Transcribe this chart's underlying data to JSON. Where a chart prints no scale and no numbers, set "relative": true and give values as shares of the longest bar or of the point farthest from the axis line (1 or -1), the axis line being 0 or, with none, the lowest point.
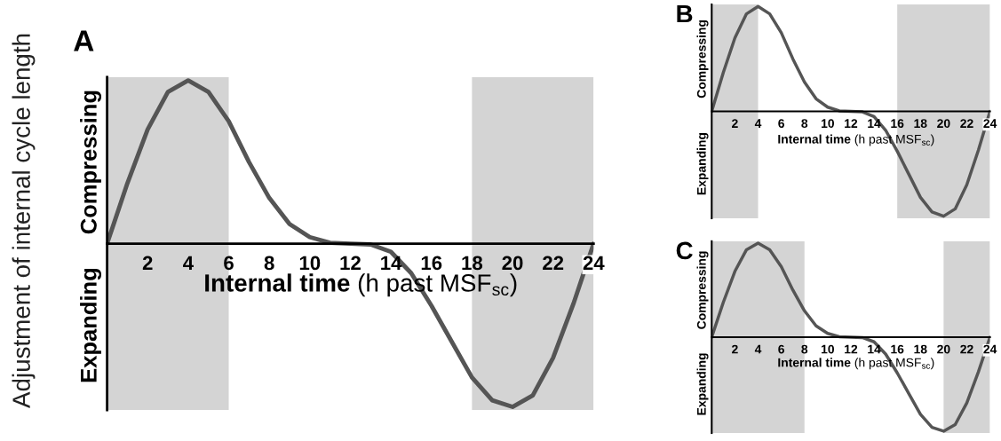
{
  "chart_data": [
    {
      "type": "line",
      "title": "A",
      "xlabel": "Internal time (h past MSF$_{sc}$)",
      "ylabel": "Adjustment of internal cycle length",
      "annotations": [
        "Compressing",
        "Expanding"
      ],
      "relative": true,
      "x": [
        0,
        1,
        2,
        3,
        4,
        5,
        6,
        7,
        8,
        9,
        10,
        11,
        12,
        13,
        14,
        15,
        16,
        17,
        18,
        19,
        20,
        21,
        22,
        23,
        24
      ],
      "series": [
        {
          "color": "#555555",
          "values": [
            0,
            0.37,
            0.7,
            0.93,
            1,
            0.93,
            0.75,
            0.5,
            0.28,
            0.12,
            0.04,
            0.005,
            0,
            -0.005,
            -0.05,
            -0.18,
            -0.38,
            -0.6,
            -0.82,
            -0.96,
            -1,
            -0.93,
            -0.7,
            -0.37,
            0
          ]
        }
      ],
      "xlim": [
        0,
        24
      ],
      "xticks": [
        2,
        4,
        6,
        8,
        10,
        12,
        14,
        16,
        18,
        20,
        22,
        24
      ],
      "bands": [
        {
          "axis": "x",
          "from": 0,
          "to": 6,
          "color": "#d4d4d4"
        },
        {
          "axis": "x",
          "from": 18,
          "to": 24,
          "color": "#d4d4d4"
        }
      ],
      "grid": false,
      "legend": false
    },
    {
      "type": "line",
      "title": "B",
      "xlabel": "Internal time (h past MSF$_{sc}$)",
      "annotations": [
        "Compressing",
        "Expanding"
      ],
      "relative": true,
      "x": [
        0,
        1,
        2,
        3,
        4,
        5,
        6,
        7,
        8,
        9,
        10,
        11,
        12,
        13,
        14,
        15,
        16,
        17,
        18,
        19,
        20,
        21,
        22,
        23,
        24
      ],
      "series": [
        {
          "color": "#555555",
          "values": [
            0,
            0.37,
            0.7,
            0.93,
            1,
            0.93,
            0.75,
            0.5,
            0.28,
            0.12,
            0.04,
            0.005,
            0,
            -0.005,
            -0.05,
            -0.18,
            -0.38,
            -0.6,
            -0.82,
            -0.96,
            -1,
            -0.93,
            -0.7,
            -0.37,
            0
          ]
        }
      ],
      "xlim": [
        0,
        24
      ],
      "xticks": [
        2,
        4,
        6,
        8,
        10,
        12,
        14,
        16,
        18,
        20,
        22,
        24
      ],
      "bands": [
        {
          "axis": "x",
          "from": 0,
          "to": 4,
          "color": "#d4d4d4"
        },
        {
          "axis": "x",
          "from": 16,
          "to": 24,
          "color": "#d4d4d4"
        }
      ],
      "grid": false,
      "legend": false
    },
    {
      "type": "line",
      "title": "C",
      "xlabel": "Internal time (h past MSF$_{sc}$)",
      "annotations": [
        "Compressing",
        "Expanding"
      ],
      "relative": true,
      "x": [
        0,
        1,
        2,
        3,
        4,
        5,
        6,
        7,
        8,
        9,
        10,
        11,
        12,
        13,
        14,
        15,
        16,
        17,
        18,
        19,
        20,
        21,
        22,
        23,
        24
      ],
      "series": [
        {
          "color": "#555555",
          "values": [
            0,
            0.37,
            0.7,
            0.93,
            1,
            0.93,
            0.75,
            0.5,
            0.28,
            0.12,
            0.04,
            0.005,
            0,
            -0.005,
            -0.05,
            -0.18,
            -0.38,
            -0.6,
            -0.82,
            -0.96,
            -1,
            -0.93,
            -0.7,
            -0.37,
            0
          ]
        }
      ],
      "xlim": [
        0,
        24
      ],
      "xticks": [
        2,
        4,
        6,
        8,
        10,
        12,
        14,
        16,
        18,
        20,
        22,
        24
      ],
      "bands": [
        {
          "axis": "x",
          "from": 0,
          "to": 8,
          "color": "#d4d4d4"
        },
        {
          "axis": "x",
          "from": 20,
          "to": 24,
          "color": "#d4d4d4"
        }
      ],
      "grid": false,
      "legend": false
    }
  ]
}
